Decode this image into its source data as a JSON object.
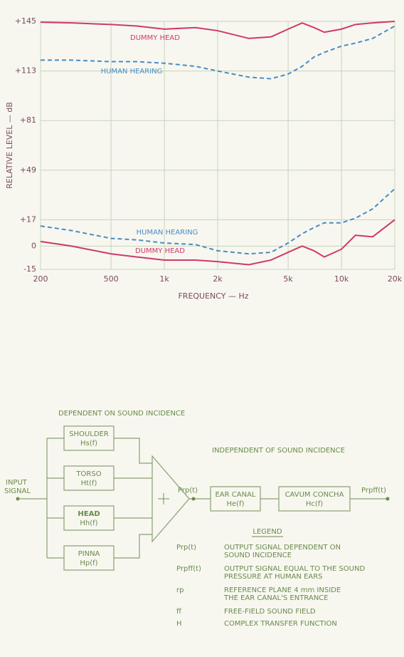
{
  "chart_data": {
    "type": "line",
    "xlabel": "FREQUENCY — Hz",
    "ylabel": "RELATIVE LEVEL — dB",
    "xscale": "log",
    "grid": true,
    "xlim": [
      200,
      20000
    ],
    "ylim": [
      -15,
      145
    ],
    "xticks": [
      200,
      500,
      {
        "value": 1000,
        "label": "1k"
      },
      {
        "value": 2000,
        "label": "2k"
      },
      {
        "value": 5000,
        "label": "5k"
      },
      {
        "value": 10000,
        "label": "10k"
      },
      {
        "value": 20000,
        "label": "20k"
      }
    ],
    "yticks": [
      -15,
      0,
      {
        "value": 17,
        "label": "+17"
      },
      {
        "value": 49,
        "label": "+49"
      },
      {
        "value": 81,
        "label": "+81"
      },
      {
        "value": 113,
        "label": "+113"
      },
      {
        "value": 145,
        "label": "+145"
      }
    ],
    "x": [
      200,
      300,
      500,
      700,
      1000,
      1500,
      2000,
      3000,
      4000,
      5000,
      6000,
      7000,
      8000,
      10000,
      12000,
      15000,
      20000
    ],
    "series": [
      {
        "name": "DUMMY HEAD",
        "color": "#d0386a",
        "dashed": false,
        "values": [
          144.5,
          144,
          143,
          142,
          140,
          141,
          139,
          134,
          135,
          140,
          144,
          141,
          138,
          140,
          143,
          144,
          145
        ]
      },
      {
        "name": "HUMAN HEARING",
        "color": "#4a8cc4",
        "dashed": true,
        "values": [
          120,
          120,
          119,
          119,
          118,
          116,
          113,
          109,
          108,
          111,
          116,
          122,
          125,
          129,
          131,
          134,
          142
        ]
      },
      {
        "name": "HUMAN HEARING",
        "color": "#4a8cc4",
        "dashed": true,
        "values": [
          13,
          10,
          5,
          4,
          2,
          1,
          -3,
          -5,
          -4,
          2,
          8,
          12,
          15,
          15,
          18,
          24,
          37
        ]
      },
      {
        "name": "DUMMY HEAD",
        "color": "#d0386a",
        "dashed": false,
        "values": [
          3,
          0,
          -5,
          -7,
          -9,
          -9,
          -10,
          -12,
          -9,
          -4,
          0,
          -3,
          -7,
          -2,
          7,
          6,
          17
        ]
      }
    ]
  },
  "diagram": {
    "title_dependent": "DEPENDENT ON SOUND INCIDENCE",
    "title_independent": "INDEPENDENT OF SOUND INCIDENCE",
    "input_label": [
      "INPUT",
      "SIGNAL"
    ],
    "blocks": [
      {
        "name": "SHOULDER",
        "function": "Hs(f)"
      },
      {
        "name": "TORSO",
        "function": "Ht(f)"
      },
      {
        "name": "HEAD",
        "function": "Hh(f)"
      },
      {
        "name": "PINNA",
        "function": "Hp(f)"
      }
    ],
    "sum_output": "Prp(t)",
    "ear_blocks": [
      {
        "name": "EAR CANAL",
        "function": "He(f)"
      },
      {
        "name": "CAVUM CONCHA",
        "function": "Hc(f)"
      }
    ],
    "final_output": "Prpff(t)",
    "legend": {
      "title": "LEGEND",
      "entries": [
        {
          "symbol": "Prp(t)",
          "text": [
            "OUTPUT SIGNAL DEPENDENT ON",
            "SOUND INCIDENCE"
          ]
        },
        {
          "symbol": "Prpff(t)",
          "text": [
            "OUTPUT SIGNAL EQUAL TO THE SOUND",
            "PRESSURE AT HUMAN EARS"
          ]
        },
        {
          "symbol": "rp",
          "text": [
            "REFERENCE PLANE 4 mm INSIDE",
            "THE EAR CANAL'S ENTRANCE"
          ]
        },
        {
          "symbol": "ff",
          "text": [
            "FREE-FIELD SOUND FIELD"
          ]
        },
        {
          "symbol": "H",
          "text": [
            "COMPLEX TRANSFER FUNCTION"
          ]
        }
      ]
    }
  }
}
